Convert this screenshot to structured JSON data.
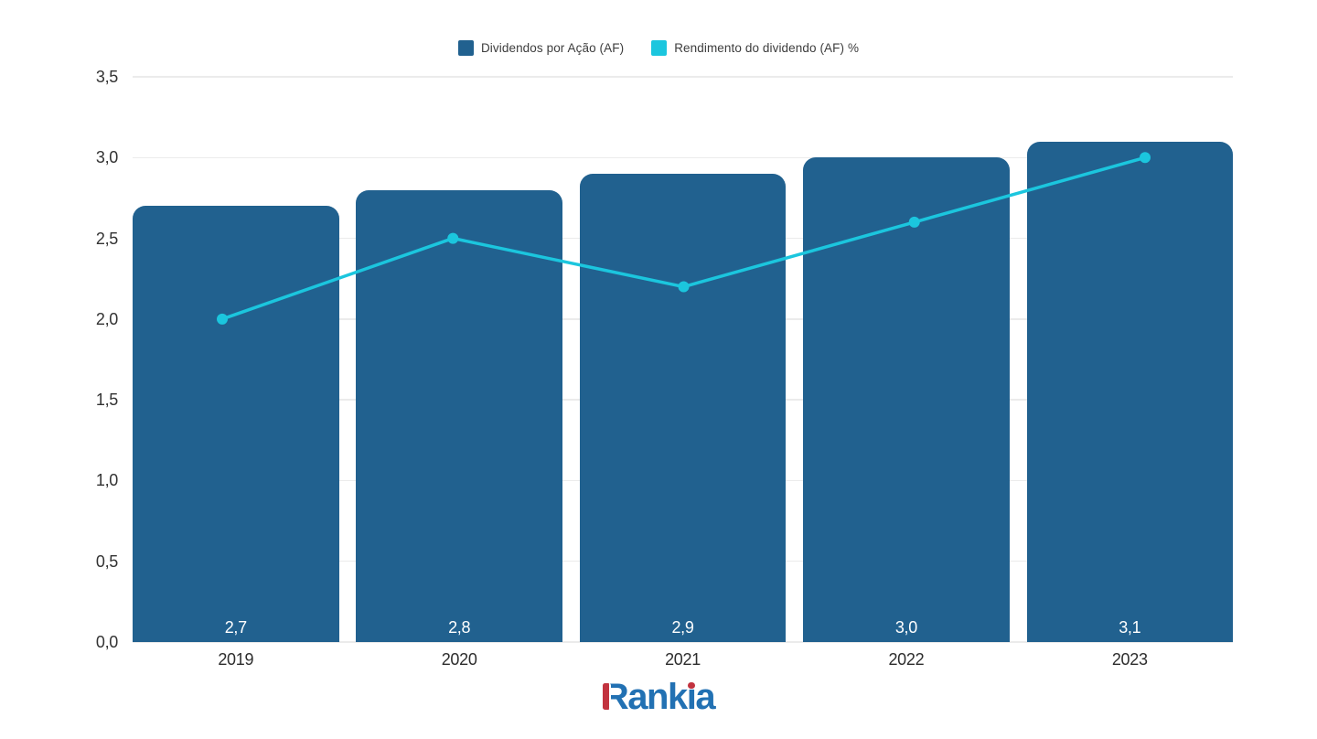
{
  "chart_data": {
    "type": "bar+line",
    "title": "",
    "categories": [
      "2019",
      "2020",
      "2021",
      "2022",
      "2023"
    ],
    "series": [
      {
        "name": "Dividendos por Ação (AF)",
        "type": "bar",
        "color": "#21618F",
        "values": [
          2.7,
          2.8,
          2.9,
          3.0,
          3.1
        ],
        "value_labels": [
          "2,7",
          "2,8",
          "2,9",
          "3,0",
          "3,1"
        ],
        "value_label_color": "#FFFFFF"
      },
      {
        "name": "Rendimento do dividendo (AF) %",
        "type": "line",
        "color": "#1BC6DE",
        "values": [
          2.0,
          2.5,
          2.2,
          2.6,
          3.0
        ]
      }
    ],
    "ylim": [
      0,
      3.5
    ],
    "y_ticks": [
      {
        "v": 3.5,
        "label": "3,5"
      },
      {
        "v": 3.0,
        "label": "3,0"
      },
      {
        "v": 2.5,
        "label": "2,5"
      },
      {
        "v": 2.0,
        "label": "2,0"
      },
      {
        "v": 1.5,
        "label": "1,5"
      },
      {
        "v": 1.0,
        "label": "1,0"
      },
      {
        "v": 0.5,
        "label": "0,5"
      },
      {
        "v": 0.0,
        "label": "0,0"
      }
    ],
    "grid": true,
    "legend_position": "top-center",
    "decimal_separator": ","
  },
  "branding": {
    "logo_text": "Rankia",
    "logo_parts": {
      "r": "R",
      "mid": "ank",
      "i_stem": "ı",
      "tail": "a"
    },
    "blue": "#2271B3",
    "red": "#C2333F"
  }
}
